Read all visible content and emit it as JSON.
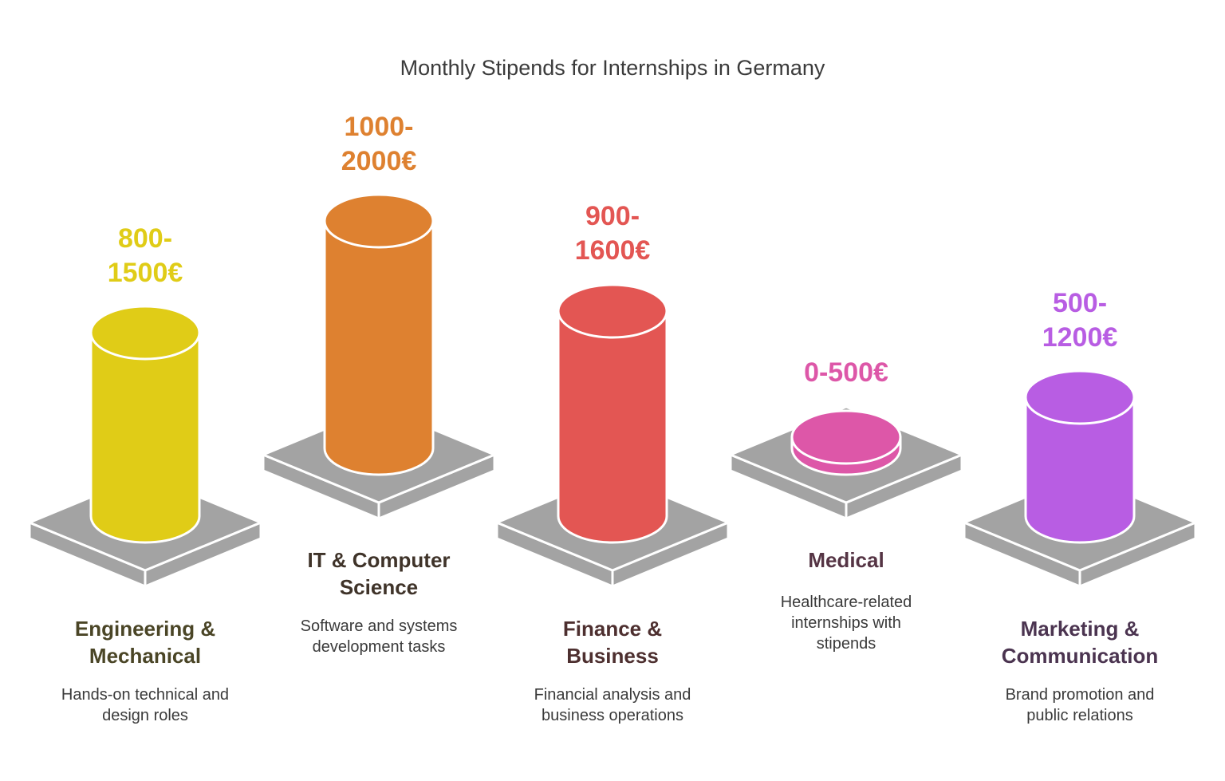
{
  "title": "Monthly Stipends for Internships in Germany",
  "chart_data": {
    "type": "bar",
    "title": "Monthly Stipends for Internships in Germany",
    "categories": [
      "Engineering & Mechanical",
      "IT & Computer Science",
      "Finance & Business",
      "Medical",
      "Marketing & Communication"
    ],
    "series": [
      {
        "values_min": [
          800,
          1000,
          900,
          0,
          500
        ],
        "values_max": [
          1500,
          2000,
          1600,
          500,
          1200
        ]
      }
    ]
  },
  "items": [
    {
      "price_line1": "800-",
      "price_line2": "1500€",
      "min": 800,
      "max": 1500,
      "title_line1": "Engineering &",
      "title_line2": "Mechanical",
      "desc_line1": "Hands-on technical and",
      "desc_line2": "design roles",
      "color": "#e0cc17",
      "title_color": "#4a4526"
    },
    {
      "price_line1": "1000-",
      "price_line2": "2000€",
      "min": 1000,
      "max": 2000,
      "title_line1": "IT & Computer",
      "title_line2": "Science",
      "desc_line1": "Software and systems",
      "desc_line2": "development tasks",
      "color": "#de8130",
      "title_color": "#3f3329"
    },
    {
      "price_line1": "900-",
      "price_line2": "1600€",
      "min": 900,
      "max": 1600,
      "title_line1": "Finance &",
      "title_line2": "Business",
      "desc_line1": "Financial analysis and",
      "desc_line2": "business operations",
      "color": "#e35653",
      "title_color": "#4d2f2f"
    },
    {
      "price_line1": "0-500€",
      "min": 0,
      "max": 500,
      "title_line1": "Medical",
      "desc_line1": "Healthcare-related",
      "desc_line2": "internships with",
      "desc_line3": "stipends",
      "color": "#dd57a8",
      "title_color": "#553444"
    },
    {
      "price_line1": "500-",
      "price_line2": "1200€",
      "min": 500,
      "max": 1200,
      "title_line1": "Marketing &",
      "title_line2": "Communication",
      "desc_line1": "Brand promotion and",
      "desc_line2": "public relations",
      "color": "#b85de3",
      "title_color": "#4b3450"
    }
  ]
}
